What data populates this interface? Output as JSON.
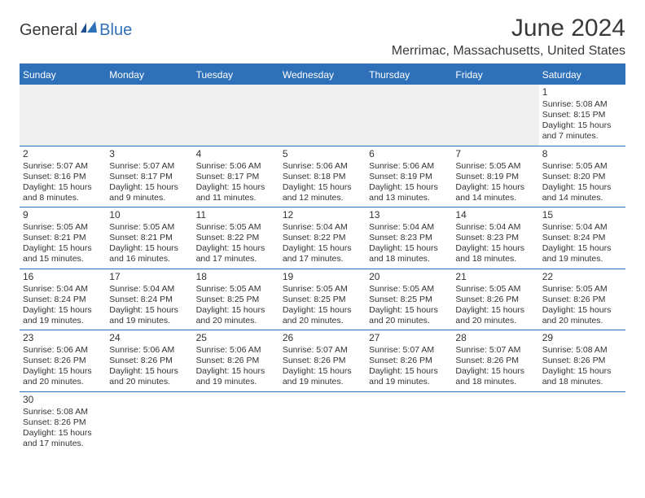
{
  "logo": {
    "general": "General",
    "blue": "Blue"
  },
  "title": "June 2024",
  "subtitle": "Merrimac, Massachusetts, United States",
  "colors": {
    "header_bar": "#2f71b8",
    "header_text": "#ffffff",
    "empty_cell": "#efefef",
    "border": "#2f71b8",
    "text": "#333333",
    "background": "#ffffff"
  },
  "daysOfWeek": [
    "Sunday",
    "Monday",
    "Tuesday",
    "Wednesday",
    "Thursday",
    "Friday",
    "Saturday"
  ],
  "weeks": [
    [
      null,
      null,
      null,
      null,
      null,
      null,
      {
        "n": "1",
        "sr": "5:08 AM",
        "ss": "8:15 PM",
        "dl": "15 hours and 7 minutes."
      }
    ],
    [
      {
        "n": "2",
        "sr": "5:07 AM",
        "ss": "8:16 PM",
        "dl": "15 hours and 8 minutes."
      },
      {
        "n": "3",
        "sr": "5:07 AM",
        "ss": "8:17 PM",
        "dl": "15 hours and 9 minutes."
      },
      {
        "n": "4",
        "sr": "5:06 AM",
        "ss": "8:17 PM",
        "dl": "15 hours and 11 minutes."
      },
      {
        "n": "5",
        "sr": "5:06 AM",
        "ss": "8:18 PM",
        "dl": "15 hours and 12 minutes."
      },
      {
        "n": "6",
        "sr": "5:06 AM",
        "ss": "8:19 PM",
        "dl": "15 hours and 13 minutes."
      },
      {
        "n": "7",
        "sr": "5:05 AM",
        "ss": "8:19 PM",
        "dl": "15 hours and 14 minutes."
      },
      {
        "n": "8",
        "sr": "5:05 AM",
        "ss": "8:20 PM",
        "dl": "15 hours and 14 minutes."
      }
    ],
    [
      {
        "n": "9",
        "sr": "5:05 AM",
        "ss": "8:21 PM",
        "dl": "15 hours and 15 minutes."
      },
      {
        "n": "10",
        "sr": "5:05 AM",
        "ss": "8:21 PM",
        "dl": "15 hours and 16 minutes."
      },
      {
        "n": "11",
        "sr": "5:05 AM",
        "ss": "8:22 PM",
        "dl": "15 hours and 17 minutes."
      },
      {
        "n": "12",
        "sr": "5:04 AM",
        "ss": "8:22 PM",
        "dl": "15 hours and 17 minutes."
      },
      {
        "n": "13",
        "sr": "5:04 AM",
        "ss": "8:23 PM",
        "dl": "15 hours and 18 minutes."
      },
      {
        "n": "14",
        "sr": "5:04 AM",
        "ss": "8:23 PM",
        "dl": "15 hours and 18 minutes."
      },
      {
        "n": "15",
        "sr": "5:04 AM",
        "ss": "8:24 PM",
        "dl": "15 hours and 19 minutes."
      }
    ],
    [
      {
        "n": "16",
        "sr": "5:04 AM",
        "ss": "8:24 PM",
        "dl": "15 hours and 19 minutes."
      },
      {
        "n": "17",
        "sr": "5:04 AM",
        "ss": "8:24 PM",
        "dl": "15 hours and 19 minutes."
      },
      {
        "n": "18",
        "sr": "5:05 AM",
        "ss": "8:25 PM",
        "dl": "15 hours and 20 minutes."
      },
      {
        "n": "19",
        "sr": "5:05 AM",
        "ss": "8:25 PM",
        "dl": "15 hours and 20 minutes."
      },
      {
        "n": "20",
        "sr": "5:05 AM",
        "ss": "8:25 PM",
        "dl": "15 hours and 20 minutes."
      },
      {
        "n": "21",
        "sr": "5:05 AM",
        "ss": "8:26 PM",
        "dl": "15 hours and 20 minutes."
      },
      {
        "n": "22",
        "sr": "5:05 AM",
        "ss": "8:26 PM",
        "dl": "15 hours and 20 minutes."
      }
    ],
    [
      {
        "n": "23",
        "sr": "5:06 AM",
        "ss": "8:26 PM",
        "dl": "15 hours and 20 minutes."
      },
      {
        "n": "24",
        "sr": "5:06 AM",
        "ss": "8:26 PM",
        "dl": "15 hours and 20 minutes."
      },
      {
        "n": "25",
        "sr": "5:06 AM",
        "ss": "8:26 PM",
        "dl": "15 hours and 19 minutes."
      },
      {
        "n": "26",
        "sr": "5:07 AM",
        "ss": "8:26 PM",
        "dl": "15 hours and 19 minutes."
      },
      {
        "n": "27",
        "sr": "5:07 AM",
        "ss": "8:26 PM",
        "dl": "15 hours and 19 minutes."
      },
      {
        "n": "28",
        "sr": "5:07 AM",
        "ss": "8:26 PM",
        "dl": "15 hours and 18 minutes."
      },
      {
        "n": "29",
        "sr": "5:08 AM",
        "ss": "8:26 PM",
        "dl": "15 hours and 18 minutes."
      }
    ],
    [
      {
        "n": "30",
        "sr": "5:08 AM",
        "ss": "8:26 PM",
        "dl": "15 hours and 17 minutes."
      },
      null,
      null,
      null,
      null,
      null,
      null
    ]
  ],
  "labels": {
    "sunrise": "Sunrise:",
    "sunset": "Sunset:",
    "daylight": "Daylight:"
  }
}
